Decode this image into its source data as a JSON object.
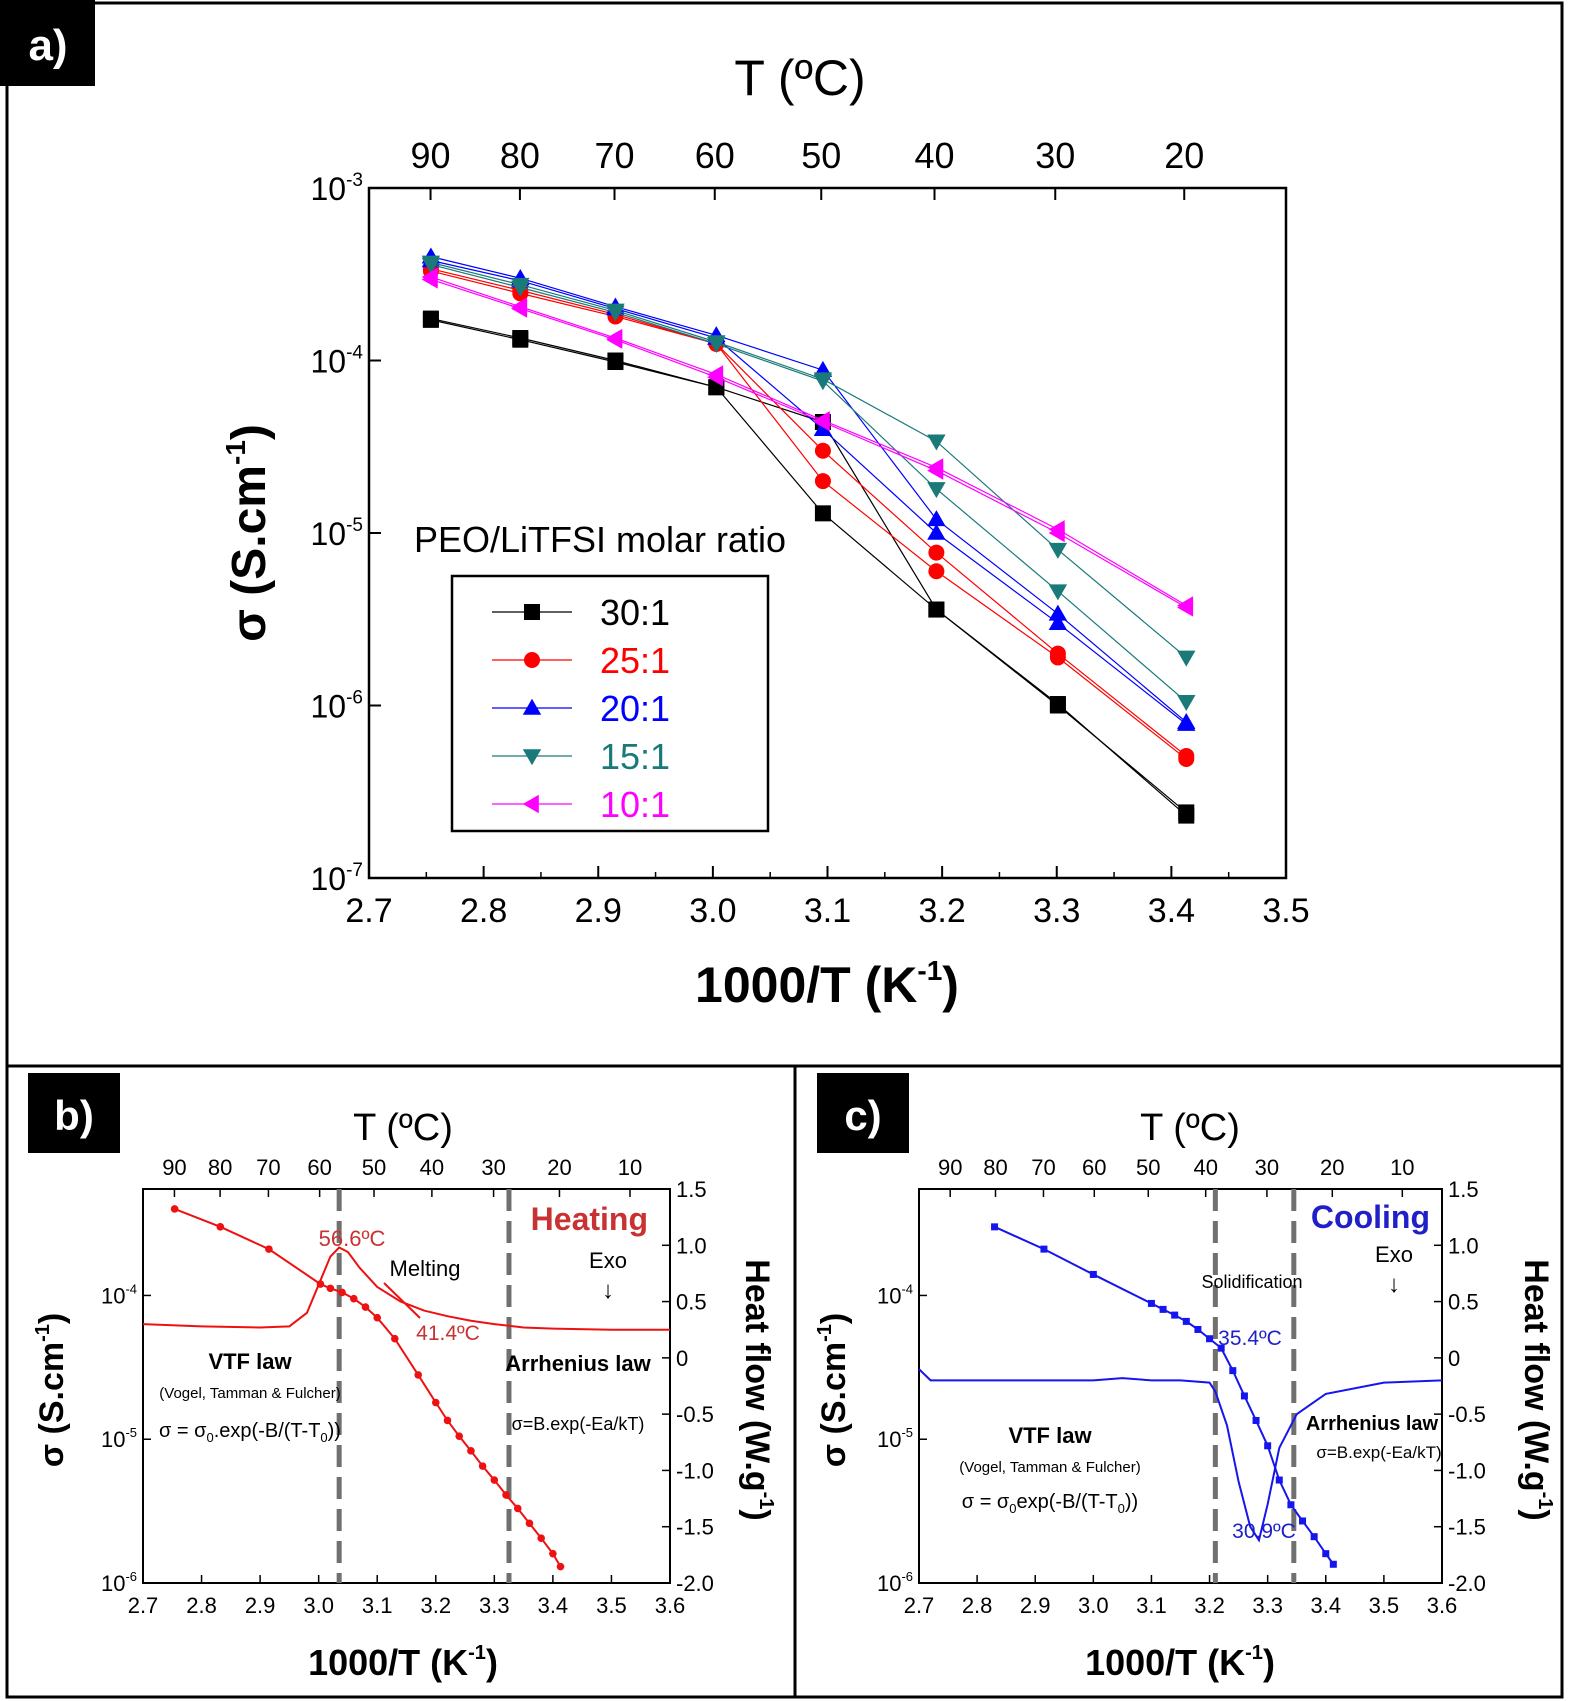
{
  "colors": {
    "s30": "#000000",
    "s25": "#ff0000",
    "s20": "#0000ff",
    "s15": "#1a7a7a",
    "s10": "#ff00ff",
    "heating": "#ee1111",
    "heating_text": "#c83232",
    "cooling": "#1515ee",
    "cooling_text": "#2020c8",
    "dashed": "#707070"
  },
  "panels": {
    "a": {
      "label": "a)",
      "top_axis_title": "T (ºC)",
      "top_ticks": [
        "90",
        "80",
        "70",
        "60",
        "50",
        "40",
        "30",
        "20"
      ],
      "xlabel": "1000/T (K",
      "xlabel_sup": "-1",
      "xlabel_end": ")",
      "ylabel": "σ (S.cm",
      "ylabel_sup": "-1",
      "ylabel_end": ")",
      "x_ticks": [
        "2.7",
        "2.8",
        "2.9",
        "3.0",
        "3.1",
        "3.2",
        "3.3",
        "3.4",
        "3.5"
      ],
      "y_ticks": [
        {
          "base": "10",
          "exp": "-3"
        },
        {
          "base": "10",
          "exp": "-4"
        },
        {
          "base": "10",
          "exp": "-5"
        },
        {
          "base": "10",
          "exp": "-6"
        },
        {
          "base": "10",
          "exp": "-7"
        }
      ],
      "legend_title": "PEO/LiTFSI molar ratio"
    },
    "b": {
      "label": "b)",
      "top_axis_title": "T (ºC)",
      "top_ticks": [
        "90",
        "80",
        "70",
        "60",
        "50",
        "40",
        "30",
        "20",
        "10"
      ],
      "xlabel": "1000/T (K",
      "xlabel_sup": "-1",
      "xlabel_end": ")",
      "ylabel": "σ (S.cm",
      "ylabel_sup": "-1",
      "ylabel_end": ")",
      "y2label": "Heat flow (W.g",
      "y2label_sup": "-1",
      "y2label_end": ")",
      "x_ticks": [
        "2.7",
        "2.8",
        "2.9",
        "3.0",
        "3.1",
        "3.2",
        "3.3",
        "3.4",
        "3.5",
        "3.6"
      ],
      "y_ticks": [
        {
          "base": "10",
          "exp": "-4"
        },
        {
          "base": "10",
          "exp": "-5"
        },
        {
          "base": "10",
          "exp": "-6"
        }
      ],
      "y2_ticks": [
        "1.5",
        "1.0",
        "0.5",
        "0",
        "-0.5",
        "-1.0",
        "-1.5",
        "-2.0"
      ],
      "mode_label": "Heating",
      "transition_label": "Melting",
      "peak_label": "56.6ºC",
      "onset_label": "41.4ºC",
      "exo_label": "Exo",
      "exo_arrow": "↓",
      "vtf_title": "VTF law",
      "vtf_sub": "(Vogel, Tamman & Fulcher)",
      "vtf_eq_a": "σ = σ",
      "vtf_eq_sub": "0",
      "vtf_eq_b": ".exp(-B/(T-T",
      "vtf_eq_sub2": "0",
      "vtf_eq_c": "))",
      "arr_title": "Arrhenius law",
      "arr_eq": "σ=B.exp(-Ea/kT)"
    },
    "c": {
      "label": "c)",
      "top_axis_title": "T (ºC)",
      "top_ticks": [
        "90",
        "80",
        "70",
        "60",
        "50",
        "40",
        "30",
        "20",
        "10"
      ],
      "xlabel": "1000/T (K",
      "xlabel_sup": "-1",
      "xlabel_end": ")",
      "ylabel": "σ (S.cm",
      "ylabel_sup": "-1",
      "ylabel_end": ")",
      "y2label": "Heat flow (W.g",
      "y2label_sup": "-1",
      "y2label_end": ")",
      "x_ticks": [
        "2.7",
        "2.8",
        "2.9",
        "3.0",
        "3.1",
        "3.2",
        "3.3",
        "3.4",
        "3.5",
        "3.6"
      ],
      "y_ticks": [
        {
          "base": "10",
          "exp": "-4"
        },
        {
          "base": "10",
          "exp": "-5"
        },
        {
          "base": "10",
          "exp": "-6"
        }
      ],
      "y2_ticks": [
        "1.5",
        "1.0",
        "0.5",
        "0",
        "-0.5",
        "-1.0",
        "-1.5",
        "-2.0"
      ],
      "mode_label": "Cooling",
      "transition_label": "Solidification",
      "onset_label": "35.4ºC",
      "peak_label": "30.9ºC",
      "exo_label": "Exo",
      "exo_arrow": "↓",
      "vtf_title": "VTF law",
      "vtf_sub": "(Vogel, Tamman & Fulcher)",
      "vtf_eq_a": "σ = σ",
      "vtf_eq_sub": "0",
      "vtf_eq_b": "exp(-B/(T-T",
      "vtf_eq_sub2": "0",
      "vtf_eq_c": "))",
      "arr_title": "Arrhenius law",
      "arr_eq": "σ=B.exp(-Ea/kT)"
    }
  },
  "chart_data": [
    {
      "type": "scatter",
      "panel": "a",
      "log_y": true,
      "xlim": [
        2.7,
        3.5
      ],
      "ylim": [
        1e-07,
        0.001
      ],
      "top_axis_celsius": [
        90,
        80,
        70,
        60,
        50,
        40,
        30,
        20
      ],
      "x": [
        2.754,
        2.832,
        2.915,
        3.003,
        3.096,
        3.195,
        3.301,
        3.413
      ],
      "legend_placement": "center-left",
      "series": [
        {
          "name": "30:1",
          "marker": "square",
          "runs": [
            [
              0.000175,
              0.000135,
              0.0001,
              7e-05,
              1.3e-05,
              3.6e-06,
              1e-06,
              2.4e-07
            ],
            [
              0.000172,
              0.000132,
              9.8e-05,
              7e-05,
              4.4e-05,
              3.6e-06,
              1.02e-06,
              2.3e-07
            ]
          ]
        },
        {
          "name": "25:1",
          "marker": "circle",
          "runs": [
            [
              0.00034,
              0.000255,
              0.000185,
              0.000125,
              3e-05,
              7.7e-06,
              2e-06,
              5.1e-07
            ],
            [
              0.00033,
              0.000245,
              0.00018,
              0.000125,
              2e-05,
              6e-06,
              1.9e-06,
              4.9e-07
            ]
          ]
        },
        {
          "name": "20:1",
          "marker": "triangle-up",
          "runs": [
            [
              0.0004,
              0.0003,
              0.000205,
              0.00014,
              8.8e-05,
              1.2e-05,
              3.4e-06,
              8e-07
            ],
            [
              0.00038,
              0.00029,
              0.0002,
              0.000135,
              4e-05,
              1e-05,
              3e-06,
              7.8e-07
            ]
          ]
        },
        {
          "name": "15:1",
          "marker": "triangle-down",
          "runs": [
            [
              0.00037,
              0.000275,
              0.000195,
              0.000128,
              7.8e-05,
              3.4e-05,
              8e-06,
              1.9e-06
            ],
            [
              0.00036,
              0.000265,
              0.00019,
              0.000125,
              7.6e-05,
              1.8e-05,
              4.6e-06,
              1.05e-06
            ]
          ]
        },
        {
          "name": "10:1",
          "marker": "triangle-left",
          "runs": [
            [
              0.000305,
              0.000205,
              0.000135,
              8.3e-05,
              4.5e-05,
              2.4e-05,
              1.05e-05,
              3.8e-06
            ],
            [
              0.000295,
              0.0002,
              0.000132,
              8e-05,
              4.4e-05,
              2.3e-05,
              1e-05,
              3.7e-06
            ]
          ]
        }
      ]
    },
    {
      "type": "line",
      "panel": "b",
      "log_y": true,
      "xlim": [
        2.7,
        3.6
      ],
      "ylim": [
        1e-06,
        0.00055
      ],
      "y2lim": [
        -2.0,
        1.5
      ],
      "top_axis_celsius": [
        90,
        80,
        70,
        60,
        50,
        40,
        30,
        20,
        10
      ],
      "vlines_x": [
        3.035,
        3.325
      ],
      "conductivity": {
        "x": [
          2.754,
          2.832,
          2.915,
          3.003,
          3.02,
          3.04,
          3.06,
          3.08,
          3.1,
          3.13,
          3.17,
          3.2,
          3.22,
          3.24,
          3.26,
          3.28,
          3.3,
          3.32,
          3.34,
          3.36,
          3.38,
          3.4,
          3.413
        ],
        "y": [
          0.0004,
          0.0003,
          0.00021,
          0.00012,
          0.000112,
          0.000105,
          9.5e-05,
          8.3e-05,
          7e-05,
          5e-05,
          2.8e-05,
          1.8e-05,
          1.35e-05,
          1.05e-05,
          8.3e-06,
          6.5e-06,
          5.2e-06,
          4.1e-06,
          3.3e-06,
          2.6e-06,
          2.05e-06,
          1.6e-06,
          1.3e-06
        ]
      },
      "heat_flow": {
        "x": [
          2.7,
          2.8,
          2.9,
          2.95,
          2.98,
          3.0,
          3.02,
          3.035,
          3.05,
          3.07,
          3.1,
          3.14,
          3.18,
          3.22,
          3.26,
          3.3,
          3.35,
          3.4,
          3.5,
          3.6
        ],
        "y": [
          0.3,
          0.28,
          0.27,
          0.28,
          0.4,
          0.65,
          0.9,
          0.98,
          0.94,
          0.8,
          0.63,
          0.5,
          0.42,
          0.37,
          0.33,
          0.3,
          0.27,
          0.26,
          0.25,
          0.25
        ]
      }
    },
    {
      "type": "line",
      "panel": "c",
      "log_y": true,
      "xlim": [
        2.7,
        3.6
      ],
      "ylim": [
        1e-06,
        0.00055
      ],
      "y2lim": [
        -2.0,
        1.5
      ],
      "top_axis_celsius": [
        90,
        80,
        70,
        60,
        50,
        40,
        30,
        20,
        10
      ],
      "vlines_x": [
        3.21,
        3.345
      ],
      "conductivity": {
        "x": [
          2.83,
          2.915,
          3.0,
          3.1,
          3.12,
          3.14,
          3.16,
          3.18,
          3.2,
          3.22,
          3.24,
          3.26,
          3.28,
          3.3,
          3.32,
          3.34,
          3.36,
          3.38,
          3.4,
          3.413
        ],
        "y": [
          0.0003,
          0.00021,
          0.00014,
          8.8e-05,
          8e-05,
          7.3e-05,
          6.6e-05,
          5.8e-05,
          5e-05,
          4.3e-05,
          3e-05,
          2e-05,
          1.35e-05,
          9e-06,
          5.2e-06,
          3.5e-06,
          2.7e-06,
          2.1e-06,
          1.6e-06,
          1.35e-06
        ]
      },
      "heat_flow": {
        "x": [
          2.7,
          2.72,
          2.8,
          2.9,
          3.0,
          3.05,
          3.1,
          3.15,
          3.2,
          3.21,
          3.23,
          3.25,
          3.27,
          3.285,
          3.3,
          3.32,
          3.35,
          3.4,
          3.5,
          3.6
        ],
        "y": [
          -0.1,
          -0.2,
          -0.2,
          -0.2,
          -0.2,
          -0.18,
          -0.2,
          -0.2,
          -0.22,
          -0.3,
          -0.6,
          -1.1,
          -1.5,
          -1.62,
          -1.3,
          -0.8,
          -0.5,
          -0.32,
          -0.22,
          -0.2
        ]
      }
    }
  ]
}
